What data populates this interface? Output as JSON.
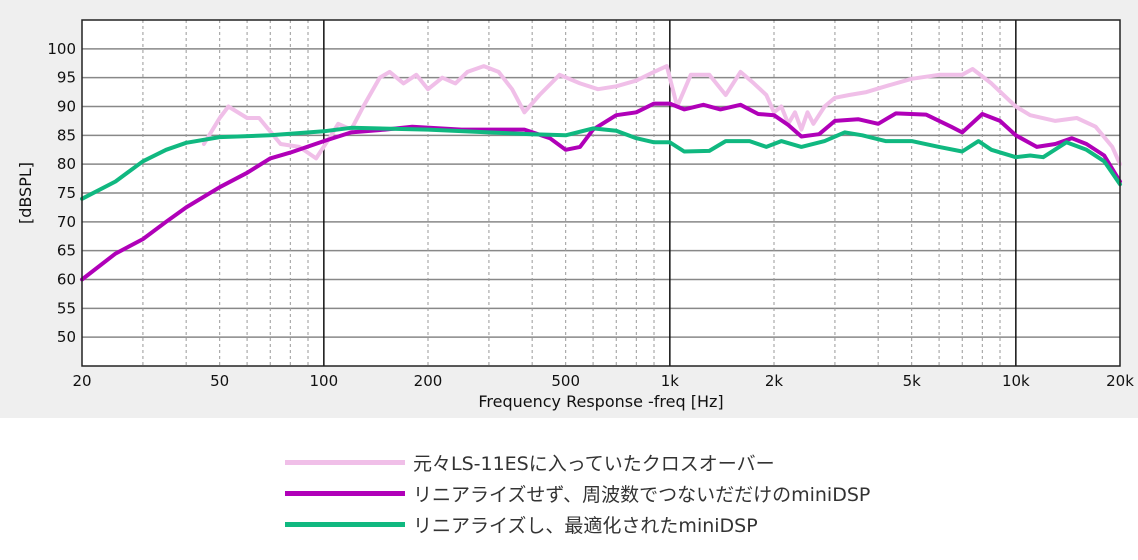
{
  "chart_data": {
    "type": "line",
    "xlabel": "Frequency Response -freq [Hz]",
    "ylabel": "[dBSPL]",
    "xscale": "log",
    "xlim": [
      20,
      20000
    ],
    "ylim": [
      45,
      105
    ],
    "grid": true,
    "legend_position": "bottom",
    "x_ticks": [
      {
        "v": 20,
        "label": "20"
      },
      {
        "v": 50,
        "label": "50"
      },
      {
        "v": 100,
        "label": "100"
      },
      {
        "v": 200,
        "label": "200"
      },
      {
        "v": 500,
        "label": "500"
      },
      {
        "v": 1000,
        "label": "1k"
      },
      {
        "v": 2000,
        "label": "2k"
      },
      {
        "v": 5000,
        "label": "5k"
      },
      {
        "v": 10000,
        "label": "10k"
      },
      {
        "v": 20000,
        "label": "20k"
      }
    ],
    "y_ticks": [
      "50",
      "55",
      "60",
      "65",
      "70",
      "75",
      "80",
      "85",
      "90",
      "95",
      "100"
    ],
    "series": [
      {
        "name": "元々LS-11ESに入っていたクロスオーバー",
        "color": "#f0bfe8",
        "points": [
          [
            45,
            83.5
          ],
          [
            50,
            88
          ],
          [
            53,
            90
          ],
          [
            60,
            88
          ],
          [
            65,
            88
          ],
          [
            75,
            83.5
          ],
          [
            85,
            83
          ],
          [
            95,
            81
          ],
          [
            105,
            85
          ],
          [
            110,
            87
          ],
          [
            120,
            86
          ],
          [
            130,
            90
          ],
          [
            145,
            95
          ],
          [
            155,
            96
          ],
          [
            170,
            94
          ],
          [
            185,
            95.5
          ],
          [
            200,
            93
          ],
          [
            220,
            95
          ],
          [
            240,
            94
          ],
          [
            260,
            96
          ],
          [
            290,
            97
          ],
          [
            320,
            96
          ],
          [
            350,
            93
          ],
          [
            380,
            89
          ],
          [
            420,
            92
          ],
          [
            480,
            95.5
          ],
          [
            550,
            94
          ],
          [
            620,
            93
          ],
          [
            700,
            93.5
          ],
          [
            800,
            94.5
          ],
          [
            900,
            96
          ],
          [
            980,
            97
          ],
          [
            1050,
            90
          ],
          [
            1150,
            95.5
          ],
          [
            1300,
            95.5
          ],
          [
            1450,
            92
          ],
          [
            1600,
            96
          ],
          [
            1750,
            94
          ],
          [
            1900,
            92
          ],
          [
            2000,
            89
          ],
          [
            2100,
            90
          ],
          [
            2200,
            87
          ],
          [
            2300,
            89
          ],
          [
            2400,
            86
          ],
          [
            2500,
            89
          ],
          [
            2600,
            87
          ],
          [
            2800,
            90
          ],
          [
            3000,
            91.5
          ],
          [
            3300,
            92
          ],
          [
            3700,
            92.5
          ],
          [
            4200,
            93.5
          ],
          [
            5000,
            94.8
          ],
          [
            6000,
            95.5
          ],
          [
            7000,
            95.5
          ],
          [
            7500,
            96.5
          ],
          [
            8500,
            94
          ],
          [
            10000,
            90
          ],
          [
            11000,
            88.5
          ],
          [
            13000,
            87.5
          ],
          [
            15000,
            88
          ],
          [
            17000,
            86.5
          ],
          [
            19000,
            83
          ],
          [
            20000,
            80
          ]
        ]
      },
      {
        "name": "リニアライズせず、周波数でつないだだけのminiDSP",
        "color": "#b000b8",
        "points": [
          [
            20,
            60
          ],
          [
            25,
            64.5
          ],
          [
            30,
            67
          ],
          [
            35,
            70
          ],
          [
            40,
            72.5
          ],
          [
            50,
            76
          ],
          [
            60,
            78.5
          ],
          [
            70,
            81
          ],
          [
            80,
            82
          ],
          [
            100,
            84
          ],
          [
            120,
            85.5
          ],
          [
            150,
            86
          ],
          [
            180,
            86.5
          ],
          [
            250,
            86
          ],
          [
            380,
            86
          ],
          [
            450,
            84.5
          ],
          [
            500,
            82.5
          ],
          [
            550,
            83
          ],
          [
            600,
            86
          ],
          [
            700,
            88.5
          ],
          [
            800,
            89
          ],
          [
            900,
            90.5
          ],
          [
            1000,
            90.5
          ],
          [
            1100,
            89.5
          ],
          [
            1250,
            90.3
          ],
          [
            1400,
            89.5
          ],
          [
            1600,
            90.3
          ],
          [
            1800,
            88.7
          ],
          [
            2000,
            88.5
          ],
          [
            2200,
            86.8
          ],
          [
            2400,
            84.8
          ],
          [
            2700,
            85.2
          ],
          [
            3000,
            87.5
          ],
          [
            3500,
            87.8
          ],
          [
            4000,
            87
          ],
          [
            4500,
            88.8
          ],
          [
            5500,
            88.6
          ],
          [
            6500,
            86.5
          ],
          [
            7000,
            85.5
          ],
          [
            8000,
            88.7
          ],
          [
            9000,
            87.5
          ],
          [
            10000,
            85
          ],
          [
            11500,
            83
          ],
          [
            13000,
            83.5
          ],
          [
            14500,
            84.5
          ],
          [
            16000,
            83.5
          ],
          [
            18000,
            81.5
          ],
          [
            20000,
            77
          ]
        ]
      },
      {
        "name": "リニアライズし、最適化されたminiDSP",
        "color": "#10b880",
        "points": [
          [
            20,
            74
          ],
          [
            25,
            77
          ],
          [
            30,
            80.5
          ],
          [
            35,
            82.5
          ],
          [
            40,
            83.7
          ],
          [
            50,
            84.7
          ],
          [
            70,
            85
          ],
          [
            100,
            85.7
          ],
          [
            120,
            86.3
          ],
          [
            200,
            86
          ],
          [
            300,
            85.5
          ],
          [
            400,
            85.2
          ],
          [
            500,
            85
          ],
          [
            600,
            86.2
          ],
          [
            700,
            85.8
          ],
          [
            800,
            84.5
          ],
          [
            900,
            83.8
          ],
          [
            1000,
            83.8
          ],
          [
            1100,
            82.2
          ],
          [
            1300,
            82.3
          ],
          [
            1450,
            84
          ],
          [
            1700,
            84
          ],
          [
            1900,
            83
          ],
          [
            2100,
            84
          ],
          [
            2400,
            83
          ],
          [
            2800,
            84
          ],
          [
            3200,
            85.5
          ],
          [
            3600,
            85
          ],
          [
            4200,
            84
          ],
          [
            5000,
            84
          ],
          [
            6000,
            83
          ],
          [
            7000,
            82.2
          ],
          [
            7800,
            84
          ],
          [
            8500,
            82.5
          ],
          [
            10000,
            81.2
          ],
          [
            11000,
            81.5
          ],
          [
            12000,
            81.2
          ],
          [
            14000,
            83.8
          ],
          [
            16000,
            82.5
          ],
          [
            18000,
            80.5
          ],
          [
            20000,
            76.5
          ]
        ]
      }
    ]
  }
}
